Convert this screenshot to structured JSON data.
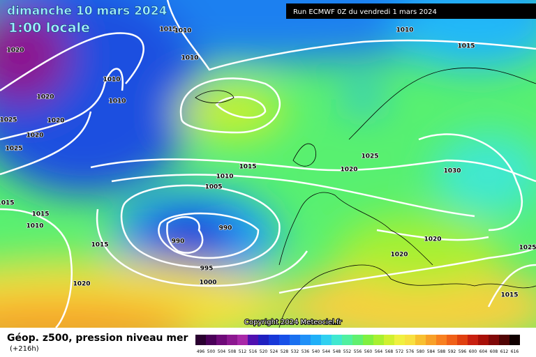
{
  "header": {
    "date": "dimanche 10 mars 2024",
    "time": "1:00 locale",
    "run": "Run ECMWF 0Z du vendredi 1 mars 2024"
  },
  "footer": {
    "title": "Géop. z500, pression niveau mer",
    "lead": "(+216h)",
    "copyright": "Copyright 2024 Meteociel.fr"
  },
  "isobar_labels": [
    "1015",
    "1010",
    "1020",
    "1010",
    "1010",
    "1020",
    "1010",
    "1025",
    "1020",
    "1020",
    "1025",
    "1015",
    "1010",
    "1005",
    "1020",
    "1025",
    "1030",
    "1015",
    "1015",
    "1010",
    "990",
    "990",
    "1015",
    "1020",
    "1020",
    "1025",
    "995",
    "1000",
    "1020",
    "1015",
    "1010",
    "1015"
  ],
  "legend": {
    "levels": [
      496,
      500,
      504,
      508,
      512,
      516,
      520,
      524,
      528,
      532,
      536,
      540,
      544,
      548,
      552,
      556,
      560,
      564,
      568,
      572,
      576,
      580,
      584,
      588,
      592,
      596,
      600,
      604,
      608,
      612,
      616
    ],
    "colors": [
      "#2a0030",
      "#4a0058",
      "#6e0a78",
      "#8c1890",
      "#a828a8",
      "#5010b0",
      "#2020c0",
      "#1838d8",
      "#1850e8",
      "#1a70f0",
      "#2090f8",
      "#20b0f8",
      "#30d0f0",
      "#40e8d0",
      "#50f0a0",
      "#60f070",
      "#80f040",
      "#a8f030",
      "#d0f030",
      "#f0f040",
      "#f8e040",
      "#f8c030",
      "#f8a028",
      "#f88020",
      "#f06018",
      "#e04010",
      "#c82010",
      "#a81008",
      "#800808",
      "#500404",
      "#100000"
    ]
  }
}
